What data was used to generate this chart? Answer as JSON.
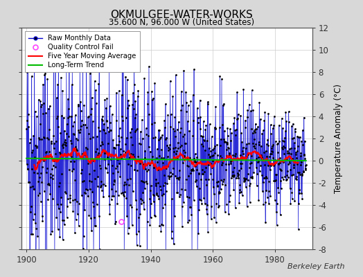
{
  "title": "OKMULGEE-WATER-WORKS",
  "subtitle": "35.600 N, 96.000 W (United States)",
  "ylabel": "Temperature Anomaly (°C)",
  "xlabel_ticks": [
    1900,
    1920,
    1940,
    1960,
    1980
  ],
  "ylim": [
    -8,
    12
  ],
  "xlim": [
    1898.5,
    1992
  ],
  "yticks": [
    -8,
    -6,
    -4,
    -2,
    0,
    2,
    4,
    6,
    8,
    10,
    12
  ],
  "background_color": "#d8d8d8",
  "plot_bg_color": "#ffffff",
  "stem_color": "#7777ff",
  "line_color": "#0000cc",
  "dot_color": "#000000",
  "ma_color": "#ff0000",
  "trend_color": "#00bb00",
  "qc_color": "#ff44ff",
  "watermark": "Berkeley Earth",
  "seed": 42,
  "start_year": 1900,
  "end_year": 1990,
  "n_months": 1092,
  "qc_x": 1930.5,
  "qc_y": -5.5
}
